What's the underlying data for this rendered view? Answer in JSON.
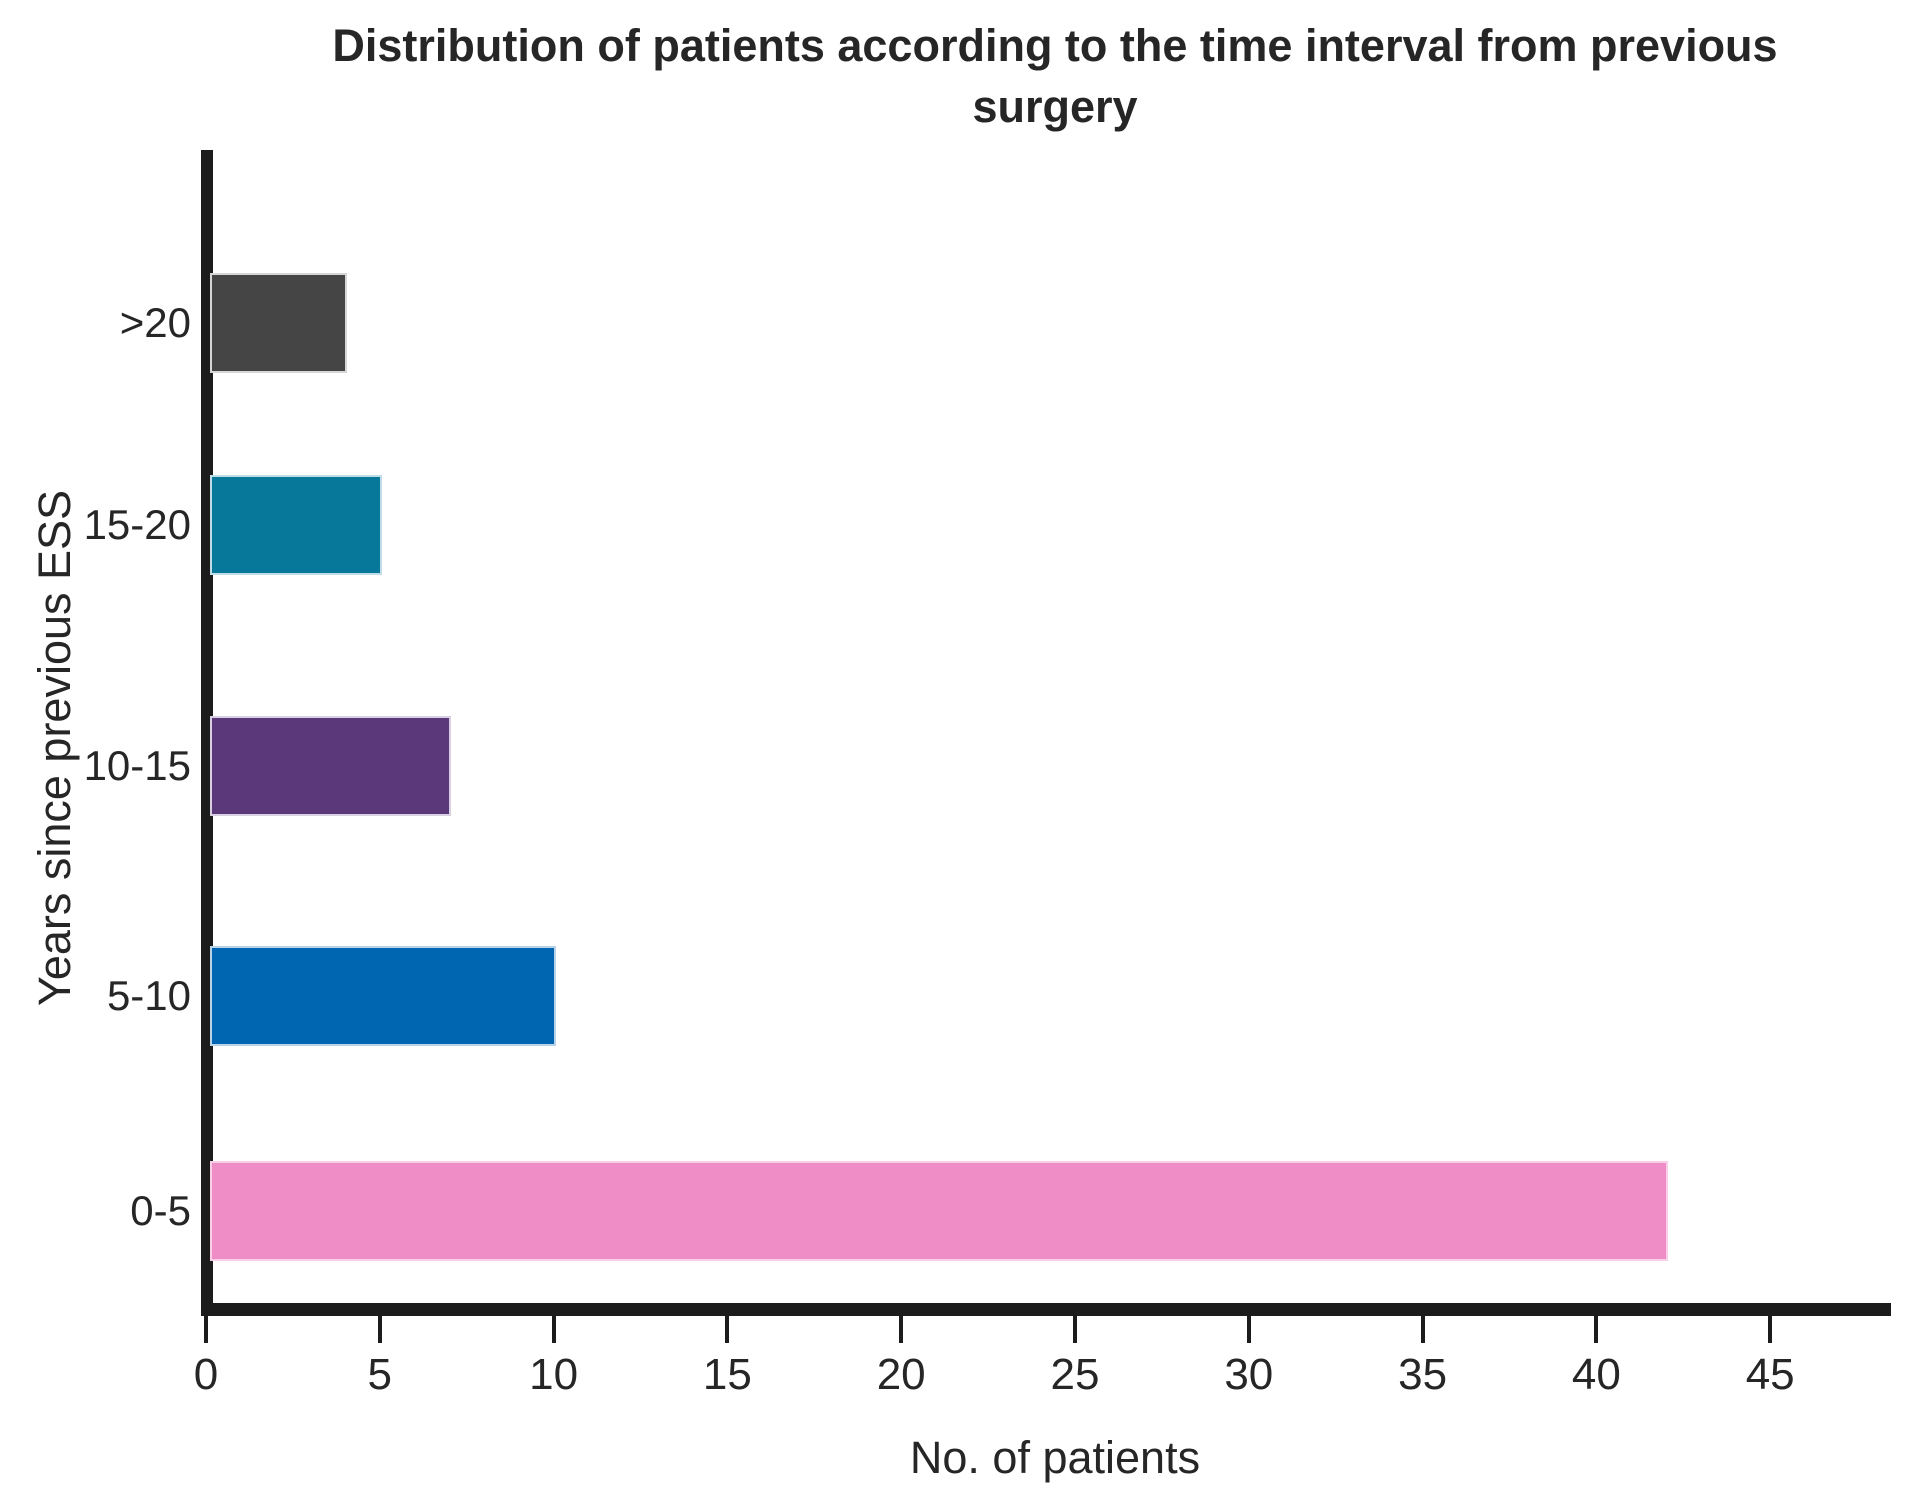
{
  "page": {
    "background_color": "#ffffff",
    "ink_color": "#1c1c1c",
    "text_color": "#262626"
  },
  "chart_data": {
    "type": "bar",
    "orientation": "horizontal",
    "title": "Distribution of patients according to the time interval from previous surgery",
    "xlabel": "No. of patients",
    "ylabel": "Years since previous ESS",
    "categories": [
      ">20",
      "15-20",
      "10-15",
      "5-10",
      "0-5"
    ],
    "values": [
      4,
      5,
      7,
      10,
      42
    ],
    "bar_colors": [
      "#454545",
      "#07789a",
      "#5a3879",
      "#0066b2",
      "#ee8dc6"
    ],
    "bar_edge_colors": [
      "#d6d6d6",
      "#bfdde7",
      "#d9cfe3",
      "#b9d3eb",
      "#f8cfe7"
    ],
    "x_ticks": [
      0,
      5,
      10,
      15,
      20,
      25,
      30,
      35,
      40,
      45
    ],
    "xlim": [
      0,
      48
    ],
    "grid": false,
    "legend": false,
    "axis_color": "#1c1c1c"
  }
}
